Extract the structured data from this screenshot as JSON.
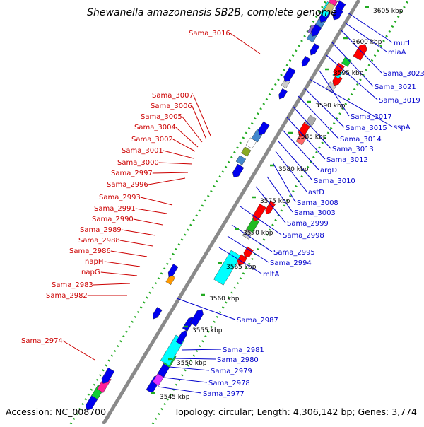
{
  "title": "Shewanella amazonensis SB2B, complete genome",
  "footer": {
    "accession": "Accession: NC_008700",
    "summary": "Topology: circular; Length: 4,306,142 bp; Genes: 3,774"
  },
  "colors": {
    "backbone": "#8a8a8a",
    "tick_dots": "#22aa22",
    "left_label": "#cc0000",
    "right_label": "#0000cc",
    "scale_label": "#000000"
  },
  "scale_ticks": [
    "3545 kbp",
    "3550 kbp",
    "3555 kbp",
    "3560 kbp",
    "3565 kbp",
    "3570 kbp",
    "3575 kbp",
    "3580 kbp",
    "3585 kbp",
    "3590 kbp",
    "3595 kbp",
    "3600 kbp",
    "3605 kbp"
  ],
  "left_genes": [
    "Sama_3016",
    "Sama_3007",
    "Sama_3006",
    "Sama_3005",
    "Sama_3004",
    "Sama_3002",
    "Sama_3001",
    "Sama_3000",
    "Sama_2997",
    "Sama_2996",
    "Sama_2993",
    "Sama_2991",
    "Sama_2990",
    "Sama_2989",
    "Sama_2988",
    "Sama_2986",
    "napH",
    "napG",
    "Sama_2983",
    "Sama_2982",
    "Sama_2974"
  ],
  "right_genes": [
    "mutL",
    "miaA",
    "Sama_3023",
    "Sama_3021",
    "Sama_3019",
    "Sama_3017",
    "sspA",
    "Sama_3015",
    "Sama_3014",
    "Sama_3013",
    "Sama_3012",
    "argD",
    "Sama_3010",
    "astD",
    "Sama_3008",
    "Sama_3003",
    "Sama_2999",
    "Sama_2998",
    "Sama_2995",
    "Sama_2994",
    "mltA",
    "Sama_2987",
    "Sama_2981",
    "Sama_2980",
    "Sama_2979",
    "Sama_2978",
    "Sama_2977"
  ]
}
